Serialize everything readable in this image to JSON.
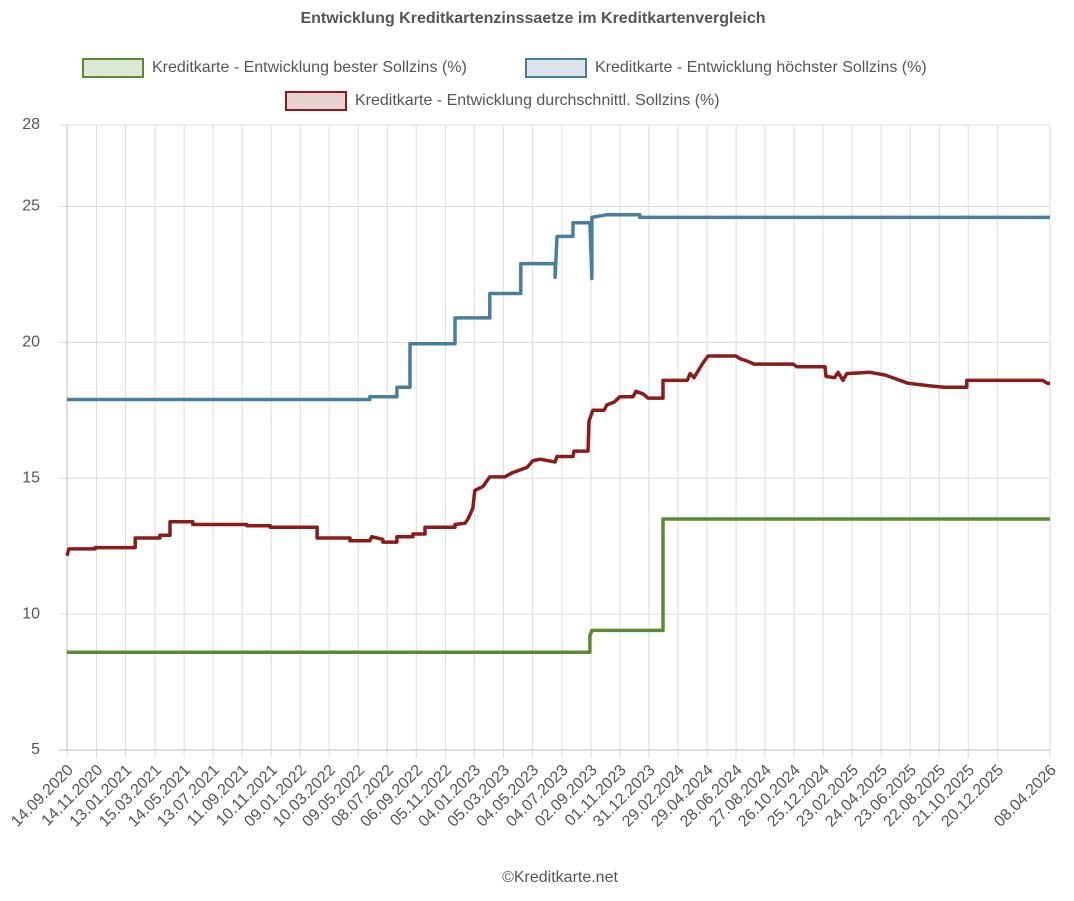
{
  "chart_data": {
    "type": "line",
    "title": "Entwicklung Kreditkartenzinssaetze im Kreditkartenvergleich",
    "footer": "©Kreditkarte.net",
    "xlim": [
      "14.09.2020",
      "08.04.2026"
    ],
    "xticks": [
      "14.09.2020",
      "14.11.2020",
      "13.01.2021",
      "15.03.2021",
      "14.05.2021",
      "13.07.2021",
      "11.09.2021",
      "10.11.2021",
      "09.01.2022",
      "10.03.2022",
      "09.05.2022",
      "08.07.2022",
      "06.09.2022",
      "05.11.2022",
      "04.01.2023",
      "05.03.2023",
      "04.05.2023",
      "04.07.2023",
      "02.09.2023",
      "01.11.2023",
      "31.12.2023",
      "29.02.2024",
      "29.04.2024",
      "28.06.2024",
      "27.08.2024",
      "26.10.2024",
      "25.12.2024",
      "23.02.2025",
      "24.04.2025",
      "23.06.2025",
      "22.08.2025",
      "21.10.2025",
      "20.12.2025",
      "08.04.2026"
    ],
    "ylim": [
      5,
      28
    ],
    "yticks": [
      5,
      10,
      15,
      20,
      25,
      28
    ],
    "grid": true,
    "series": [
      {
        "name": "Kreditkarte - Entwicklung bester Sollzins  (%)",
        "color": "#5b8a31",
        "x": [
          "14.09.2020",
          "31.08.2023",
          "31.08.2023",
          "04.09.2023",
          "29.01.2024",
          "29.01.2024",
          "08.04.2026"
        ],
        "values": [
          8.6,
          8.6,
          9.2,
          9.4,
          9.4,
          13.5,
          13.5
        ]
      },
      {
        "name": "Kreditkarte - Entwicklung höchster Sollzins (%)",
        "color": "#4a7f9c",
        "x": [
          "14.09.2020",
          "02.06.2022",
          "02.06.2022",
          "28.07.2022",
          "28.07.2022",
          "24.08.2022",
          "24.08.2022",
          "25.11.2022",
          "25.11.2022",
          "05.02.2023",
          "05.02.2023",
          "10.04.2023",
          "10.04.2023",
          "20.06.2023",
          "20.06.2023",
          "24.06.2023",
          "27.07.2023",
          "27.07.2023",
          "31.08.2023",
          "04.09.2023",
          "04.09.2023",
          "05.10.2023",
          "12.12.2023",
          "12.12.2023",
          "08.04.2026"
        ],
        "values": [
          17.9,
          17.9,
          18.0,
          18.0,
          18.35,
          18.35,
          19.95,
          19.95,
          20.9,
          20.9,
          21.8,
          21.8,
          22.9,
          22.9,
          22.4,
          23.9,
          23.9,
          24.4,
          24.4,
          22.35,
          24.6,
          24.7,
          24.7,
          24.6,
          24.6
        ]
      },
      {
        "name": "Kreditkarte - Entwicklung durchschnittl. Sollzins (%)",
        "color": "#8b1c1a",
        "x": [
          "14.09.2020",
          "18.09.2020",
          "11.11.2020",
          "11.11.2020",
          "02.02.2021",
          "02.02.2021",
          "25.03.2021",
          "25.03.2021",
          "15.04.2021",
          "15.04.2021",
          "01.06.2021",
          "01.06.2021",
          "21.09.2021",
          "21.09.2021",
          "08.11.2021",
          "08.11.2021",
          "13.02.2022",
          "13.02.2022",
          "22.04.2022",
          "22.04.2022",
          "02.06.2022",
          "06.06.2022",
          "29.06.2022",
          "29.06.2022",
          "28.07.2022",
          "28.07.2022",
          "30.08.2022",
          "30.08.2022",
          "24.09.2022",
          "24.09.2022",
          "25.11.2022",
          "25.11.2022",
          "16.12.2022",
          "22.12.2022",
          "01.01.2023",
          "05.01.2023",
          "22.01.2023",
          "05.02.2023",
          "08.03.2023",
          "23.03.2023",
          "23.04.2023",
          "05.05.2023",
          "20.05.2023",
          "20.06.2023",
          "24.06.2023",
          "27.07.2023",
          "29.07.2023",
          "27.08.2023",
          "29.08.2023",
          "06.09.2023",
          "29.09.2023",
          "05.10.2023",
          "20.10.2023",
          "01.11.2023",
          "28.11.2023",
          "04.12.2023",
          "19.12.2023",
          "29.12.2023",
          "29.01.2024",
          "29.01.2024",
          "19.03.2024",
          "25.03.2024",
          "02.04.2024",
          "19.04.2024",
          "01.05.2024",
          "28.06.2024",
          "06.07.2024",
          "23.07.2024",
          "04.08.2024",
          "24.10.2024",
          "01.11.2024",
          "29.12.2024",
          "31.12.2024",
          "18.01.2025",
          "25.01.2025",
          "04.02.2025",
          "12.02.2025",
          "01.04.2025",
          "02.05.2025",
          "18.06.2025",
          "03.08.2025",
          "01.09.2025",
          "18.10.2025",
          "18.10.2025",
          "24.03.2026",
          "02.04.2026",
          "08.04.2026"
        ],
        "values": [
          12.15,
          12.4,
          12.4,
          12.45,
          12.45,
          12.8,
          12.8,
          12.9,
          12.9,
          13.4,
          13.4,
          13.3,
          13.3,
          13.25,
          13.25,
          13.2,
          13.2,
          12.8,
          12.8,
          12.7,
          12.7,
          12.85,
          12.75,
          12.65,
          12.65,
          12.85,
          12.85,
          12.95,
          12.95,
          13.2,
          13.2,
          13.3,
          13.35,
          13.5,
          13.9,
          14.55,
          14.7,
          15.05,
          15.05,
          15.2,
          15.4,
          15.65,
          15.7,
          15.6,
          15.8,
          15.8,
          16.0,
          16.0,
          17.1,
          17.5,
          17.5,
          17.7,
          17.8,
          18.0,
          18.0,
          18.2,
          18.1,
          17.95,
          17.95,
          18.6,
          18.6,
          18.85,
          18.7,
          19.2,
          19.5,
          19.5,
          19.4,
          19.3,
          19.2,
          19.2,
          19.1,
          19.1,
          18.75,
          18.7,
          18.9,
          18.6,
          18.85,
          18.9,
          18.8,
          18.5,
          18.4,
          18.35,
          18.35,
          18.6,
          18.6,
          18.5,
          18.5
        ]
      }
    ]
  }
}
